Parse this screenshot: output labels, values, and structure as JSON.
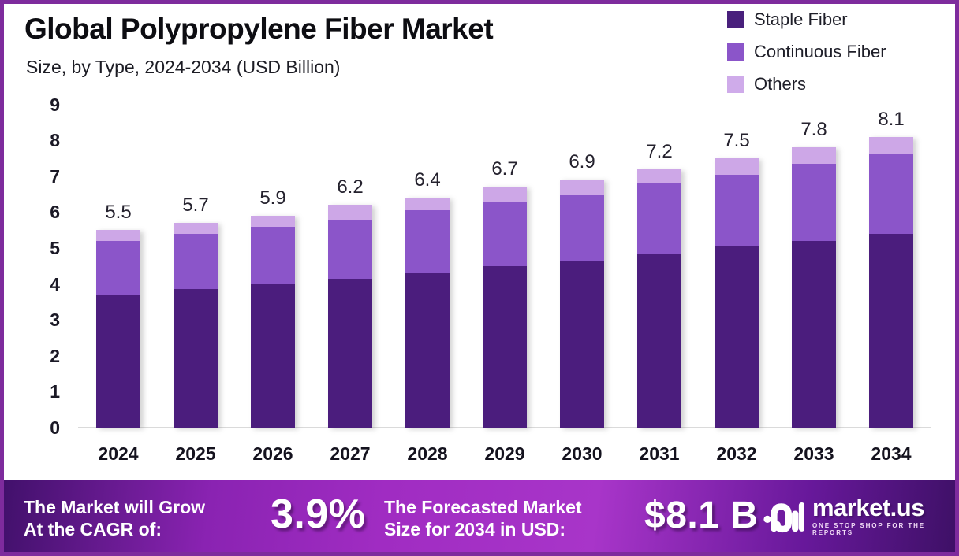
{
  "header": {
    "title": "Global Polypropylene Fiber Market",
    "subtitle": "Size, by Type, 2024-2034 (USD Billion)"
  },
  "legend": {
    "items": [
      {
        "label": "Staple Fiber",
        "color": "#49207C"
      },
      {
        "label": "Continuous Fiber",
        "color": "#8B55C9"
      },
      {
        "label": "Others",
        "color": "#CFABEA"
      }
    ]
  },
  "chart_data": {
    "type": "bar",
    "stacked": true,
    "title": "Global Polypropylene Fiber Market Size, by Type, 2024-2034 (USD Billion)",
    "categories": [
      "2024",
      "2025",
      "2026",
      "2027",
      "2028",
      "2029",
      "2030",
      "2031",
      "2032",
      "2033",
      "2034"
    ],
    "series": [
      {
        "name": "Staple Fiber",
        "color": "#4B1D7D",
        "values": [
          3.7,
          3.85,
          4.0,
          4.15,
          4.3,
          4.5,
          4.65,
          4.85,
          5.05,
          5.2,
          5.4
        ]
      },
      {
        "name": "Continuous Fiber",
        "color": "#8B55C9",
        "values": [
          1.5,
          1.55,
          1.6,
          1.65,
          1.75,
          1.8,
          1.85,
          1.95,
          2.0,
          2.15,
          2.2
        ]
      },
      {
        "name": "Others",
        "color": "#CDA7E7",
        "values": [
          0.3,
          0.3,
          0.3,
          0.4,
          0.35,
          0.4,
          0.4,
          0.4,
          0.45,
          0.45,
          0.5
        ]
      }
    ],
    "totals": [
      5.5,
      5.7,
      5.9,
      6.2,
      6.4,
      6.7,
      6.9,
      7.2,
      7.5,
      7.8,
      8.1
    ],
    "total_labels": [
      "5.5",
      "5.7",
      "5.9",
      "6.2",
      "6.4",
      "6.7",
      "6.9",
      "7.2",
      "7.5",
      "7.8",
      "8.1"
    ],
    "xlabel": "",
    "ylabel": "",
    "ylim": [
      0,
      9
    ],
    "yticks": [
      "0",
      "1",
      "2",
      "3",
      "4",
      "5",
      "6",
      "7",
      "8",
      "9"
    ],
    "grid": false,
    "legend_position": "top-right"
  },
  "banner": {
    "cagr_label_line1": "The Market will Grow",
    "cagr_label_line2": "At the CAGR of:",
    "cagr_value": "3.9%",
    "forecast_label_line1": "The Forecasted Market",
    "forecast_label_line2": "Size for 2034 in USD:",
    "forecast_value": "$8.1 B",
    "logo_text": "market.us",
    "logo_tagline": "ONE STOP SHOP FOR THE REPORTS"
  }
}
